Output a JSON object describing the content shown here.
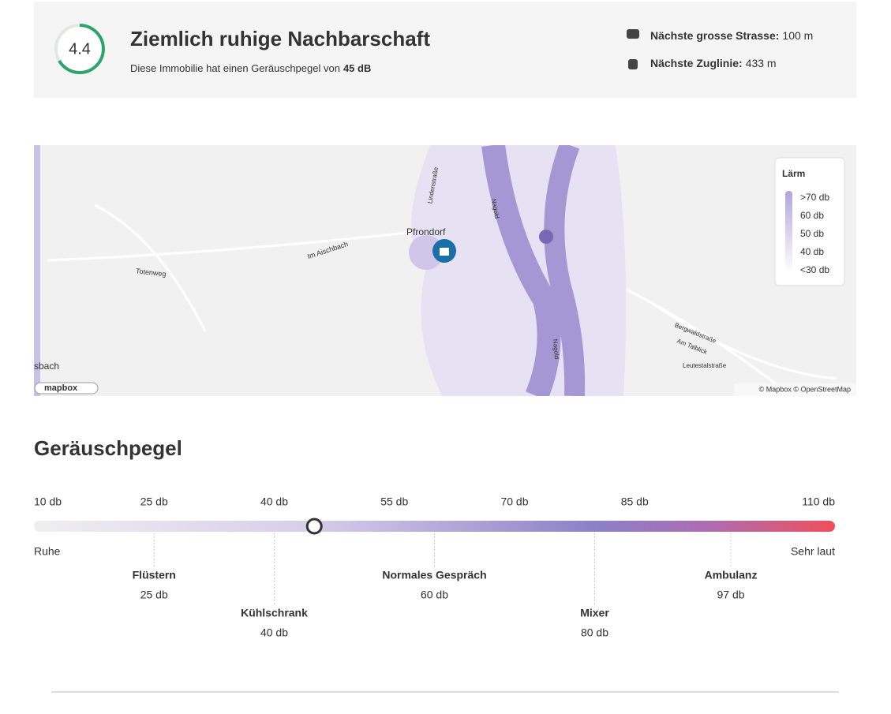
{
  "header": {
    "score": "4.4",
    "title": "Ziemlich ruhige Nachbarschaft",
    "subtitle": "Diese Immobilie hat einen Geräuschpegel von",
    "noise_level": {
      "value": 45,
      "label": "45 dB"
    },
    "nearest": [
      {
        "label": "Nächste grosse Strasse:",
        "value": "100 m"
      },
      {
        "label": "Nächste Zuglinie:",
        "value": "433 m"
      }
    ]
  },
  "map": {
    "legend": {
      "title": "Lärm",
      "levels": [
        ">70 db",
        "60 db",
        "50 db",
        "40 db",
        "<30 db"
      ]
    },
    "places": [
      "Pfrondorf",
      "Im Aischbach",
      "Totenweg",
      "Lindenstraße",
      "Nagold",
      "Nagold",
      "Bergwaldstraße",
      "Am Talblick",
      "Leutestalstraße",
      "sbach"
    ],
    "attribution": "© Mapbox © OpenStreetMap",
    "logo": "mapbox"
  },
  "scale": {
    "title": "Geräuschpegel",
    "xlim": [
      10,
      110
    ],
    "xticks": [
      {
        "value": 10,
        "label": "10 db"
      },
      {
        "value": 25,
        "label": "25 db"
      },
      {
        "value": 40,
        "label": "40 db"
      },
      {
        "value": 55,
        "label": "55 db"
      },
      {
        "value": 70,
        "label": "70 db"
      },
      {
        "value": 85,
        "label": "85 db"
      },
      {
        "value": 110,
        "label": "110 db"
      }
    ],
    "min_label": "Ruhe",
    "max_label": "Sehr laut",
    "references": [
      {
        "name": "Flüstern",
        "value": 25,
        "label": "25 db"
      },
      {
        "name": "Kühlschrank",
        "value": 40,
        "label": "40 db"
      },
      {
        "name": "Normales Gespräch",
        "value": 60,
        "label": "60 db"
      },
      {
        "name": "Mixer",
        "value": 80,
        "label": "80 db"
      },
      {
        "name": "Ambulanz",
        "value": 97,
        "label": "97 db"
      }
    ]
  }
}
